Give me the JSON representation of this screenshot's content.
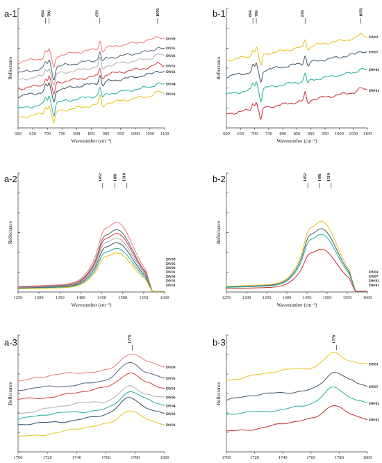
{
  "chart_data": [
    {
      "panel_label": "a-1",
      "type": "line",
      "xlabel": "Wavenumber (cm⁻¹)",
      "ylabel": "Reflectance",
      "xlim": [
        600,
        1100
      ],
      "xticks": [
        600,
        650,
        700,
        750,
        800,
        850,
        900,
        950,
        1000,
        1050,
        1100
      ],
      "peaks": [
        694,
        706,
        879,
        1076
      ],
      "series": [
        {
          "name": "DY09",
          "color": "#f08080",
          "offset": 0.8
        },
        {
          "name": "DY05",
          "color": "#5a6f82",
          "offset": 0.68
        },
        {
          "name": "DY06",
          "color": "#b5b5b5",
          "offset": 0.6
        },
        {
          "name": "DY01",
          "color": "#d94a4a",
          "offset": 0.5
        },
        {
          "name": "DY02",
          "color": "#3f5a70",
          "offset": 0.42
        },
        {
          "name": "DY04",
          "color": "#2fb4a4",
          "offset": 0.28
        },
        {
          "name": "DY03",
          "color": "#e8c628",
          "offset": 0.18
        }
      ]
    },
    {
      "panel_label": "b-1",
      "type": "line",
      "xlabel": "Wavenumber (cm⁻¹)",
      "ylabel": "Reflectance",
      "xlim": [
        600,
        1100
      ],
      "xticks": [
        600,
        650,
        700,
        750,
        800,
        850,
        900,
        950,
        1000,
        1050,
        1100
      ],
      "peaks": [
        694,
        706,
        879,
        1076
      ],
      "series": [
        {
          "name": "DY01",
          "color": "#e8c628",
          "offset": 0.82
        },
        {
          "name": "DY07",
          "color": "#4a6274",
          "offset": 0.64
        },
        {
          "name": "DW02",
          "color": "#2fb4a4",
          "offset": 0.44
        },
        {
          "name": "DW01",
          "color": "#c8383f",
          "offset": 0.22
        }
      ]
    },
    {
      "panel_label": "a-2",
      "type": "line",
      "xlabel": "Wavenumber (cm⁻¹)",
      "ylabel": "Reflectance",
      "xlim": [
        1250,
        1600
      ],
      "xticks": [
        1250,
        1300,
        1350,
        1400,
        1450,
        1500,
        1550,
        1600
      ],
      "peaks": [
        1452,
        1481,
        1510
      ],
      "series": [
        {
          "name": "DY09",
          "color": "#f08080",
          "offset": 0.96
        },
        {
          "name": "DY05",
          "color": "#5a6f82",
          "offset": 0.8
        },
        {
          "name": "DY06",
          "color": "#d94a4a",
          "offset": 0.72
        },
        {
          "name": "DY01",
          "color": "#b5b5b5",
          "offset": 0.62
        },
        {
          "name": "DY04",
          "color": "#3f5a70",
          "offset": 0.52
        },
        {
          "name": "DY02",
          "color": "#2fb4a4",
          "offset": 0.4
        },
        {
          "name": "DY03",
          "color": "#e8c628",
          "offset": 0.3
        }
      ]
    },
    {
      "panel_label": "b-2",
      "type": "line",
      "xlabel": "Wavenumber (cm⁻¹)",
      "ylabel": "Reflectance",
      "xlim": [
        1250,
        1600
      ],
      "xticks": [
        1250,
        1300,
        1350,
        1400,
        1450,
        1500,
        1550,
        1600
      ],
      "peaks": [
        1452,
        1481,
        1510
      ],
      "series": [
        {
          "name": "DY01",
          "color": "#e8c628",
          "offset": 0.98
        },
        {
          "name": "DY07",
          "color": "#4a6274",
          "offset": 0.82
        },
        {
          "name": "DW02",
          "color": "#2fb4a4",
          "offset": 0.7
        },
        {
          "name": "DW01",
          "color": "#c8383f",
          "offset": 0.38
        }
      ]
    },
    {
      "panel_label": "a-3",
      "type": "line",
      "xlabel": "Wavenumber (cm⁻¹)",
      "ylabel": "Reflectance",
      "xlim": [
        1700,
        1800
      ],
      "xticks": [
        1700,
        1720,
        1740,
        1760,
        1780,
        1800
      ],
      "peaks": [
        1778
      ],
      "series": [
        {
          "name": "DY09",
          "color": "#f08080",
          "offset": 0.88
        },
        {
          "name": "DY05",
          "color": "#5a6f82",
          "offset": 0.76
        },
        {
          "name": "DY01",
          "color": "#d94a4a",
          "offset": 0.66
        },
        {
          "name": "DY06",
          "color": "#b5b5b5",
          "offset": 0.52
        },
        {
          "name": "DY04",
          "color": "#2fb4a4",
          "offset": 0.44
        },
        {
          "name": "DY02",
          "color": "#3f5a70",
          "offset": 0.36
        },
        {
          "name": "DY03",
          "color": "#e8c628",
          "offset": 0.24
        }
      ]
    },
    {
      "panel_label": "b-3",
      "type": "line",
      "xlabel": "Wavenumber (cm⁻¹)",
      "ylabel": "Reflectance",
      "xlim": [
        1700,
        1800
      ],
      "xticks": [
        1700,
        1720,
        1740,
        1760,
        1780,
        1800
      ],
      "peaks": [
        1778
      ],
      "series": [
        {
          "name": "DY01",
          "color": "#e8c628",
          "offset": 0.9
        },
        {
          "name": "DY07",
          "color": "#4a6274",
          "offset": 0.66
        },
        {
          "name": "DW02",
          "color": "#2fb4a4",
          "offset": 0.48
        },
        {
          "name": "DW01",
          "color": "#c8383f",
          "offset": 0.3
        }
      ]
    }
  ]
}
